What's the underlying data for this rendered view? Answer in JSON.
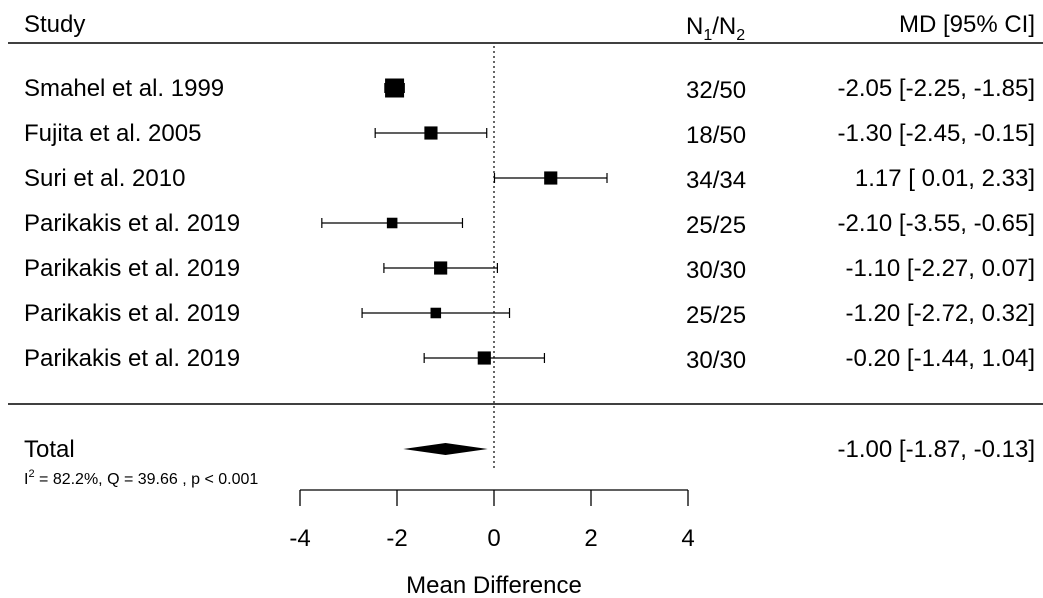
{
  "header": {
    "study": "Study",
    "n_label": "N",
    "n_sub1": "1",
    "n_slash": "/",
    "n_sub2": "2",
    "effect": "MD [95% CI]"
  },
  "chart_data": {
    "type": "forest",
    "xlabel": "Mean Difference",
    "xlim": [
      -4,
      4
    ],
    "xticks": [
      -4,
      -2,
      0,
      2,
      4
    ],
    "reference_line": 0,
    "studies": [
      {
        "label": "Smahel et al. 1999",
        "n": "32/50",
        "md": -2.05,
        "lower": -2.25,
        "upper": -1.85,
        "text": "-2.05 [-2.25, -1.85]",
        "weight": 1.0
      },
      {
        "label": "Fujita et al. 2005",
        "n": "18/50",
        "md": -1.3,
        "lower": -2.45,
        "upper": -0.15,
        "text": "-1.30 [-2.45, -0.15]",
        "weight": 0.55
      },
      {
        "label": "Suri et al. 2010",
        "n": "34/34",
        "md": 1.17,
        "lower": 0.01,
        "upper": 2.33,
        "text": "1.17 [ 0.01,  2.33]",
        "weight": 0.55
      },
      {
        "label": "Parikakis et al. 2019",
        "n": "25/25",
        "md": -2.1,
        "lower": -3.55,
        "upper": -0.65,
        "text": "-2.10 [-3.55, -0.65]",
        "weight": 0.35
      },
      {
        "label": "Parikakis et al. 2019",
        "n": "30/30",
        "md": -1.1,
        "lower": -2.27,
        "upper": 0.07,
        "text": "-1.10 [-2.27,  0.07]",
        "weight": 0.55
      },
      {
        "label": "Parikakis et al. 2019",
        "n": "25/25",
        "md": -1.2,
        "lower": -2.72,
        "upper": 0.32,
        "text": "-1.20 [-2.72,  0.32]",
        "weight": 0.35
      },
      {
        "label": "Parikakis et al. 2019",
        "n": "30/30",
        "md": -0.2,
        "lower": -1.44,
        "upper": 1.04,
        "text": "-0.20 [-1.44,  1.04]",
        "weight": 0.55
      }
    ],
    "total": {
      "label": "Total",
      "md": -1.0,
      "lower": -1.87,
      "upper": -0.13,
      "text": "-1.00 [-1.87, -0.13]",
      "het_i": "I",
      "het_sup": "2",
      "het_rest": " = 82.2%, Q = 39.66 , p  < 0.001"
    }
  }
}
